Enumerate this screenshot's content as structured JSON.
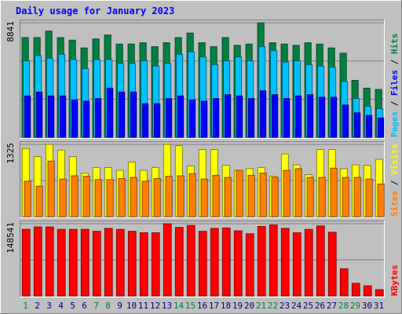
{
  "chart_data": {
    "type": "bar",
    "title": "Daily usage for January 2023",
    "categories": [
      "1",
      "2",
      "3",
      "4",
      "5",
      "6",
      "7",
      "8",
      "9",
      "10",
      "11",
      "12",
      "13",
      "14",
      "15",
      "16",
      "17",
      "18",
      "19",
      "20",
      "21",
      "22",
      "23",
      "24",
      "25",
      "26",
      "27",
      "28",
      "29",
      "30",
      "31"
    ],
    "weekend_days": [
      "1",
      "7",
      "8",
      "14",
      "15",
      "21",
      "22",
      "28",
      "29"
    ],
    "panels": [
      {
        "name": "hits_files_pages",
        "ymax_label": "8841",
        "ylim": [
          0,
          8841
        ],
        "right_labels": [
          "Pages",
          "Files",
          "Hits"
        ],
        "series": [
          {
            "name": "Hits",
            "color": "#008040",
            "values": [
              7700,
              7700,
              8200,
              7700,
              7500,
              6900,
              7600,
              7900,
              7200,
              7200,
              7300,
              7000,
              7300,
              7700,
              8050,
              7300,
              7000,
              7700,
              7100,
              7200,
              8841,
              7300,
              7200,
              7100,
              7300,
              7200,
              6900,
              6500,
              4400,
              3800,
              3700
            ]
          },
          {
            "name": "Files",
            "color": "#00c0ff",
            "values": [
              5900,
              6300,
              6100,
              6400,
              6000,
              5300,
              6000,
              6000,
              5700,
              5700,
              5900,
              5500,
              5700,
              6400,
              6600,
              6200,
              5600,
              5900,
              6200,
              5900,
              7000,
              6700,
              5800,
              5900,
              5600,
              5500,
              5400,
              4300,
              3000,
              2400,
              2200
            ]
          },
          {
            "name": "Pages",
            "color": "#0000ff",
            "values": [
              3200,
              3500,
              3200,
              3200,
              2900,
              2800,
              3000,
              3800,
              3500,
              3500,
              2600,
              2600,
              3000,
              3200,
              2900,
              2800,
              3000,
              3300,
              3200,
              3000,
              3600,
              3300,
              3000,
              3200,
              3300,
              3100,
              3100,
              2500,
              1900,
              1700,
              1500
            ]
          }
        ]
      },
      {
        "name": "visits_sites",
        "ymax_label": "1325",
        "ylim": [
          0,
          1325
        ],
        "right_labels": [
          "Sites",
          "Visits"
        ],
        "series": [
          {
            "name": "Visits",
            "color": "#ffff00",
            "values": [
              1250,
              1100,
              1325,
              1220,
              1100,
              800,
              900,
              900,
              850,
              1000,
              850,
              900,
              1325,
              1300,
              930,
              1230,
              1230,
              940,
              850,
              880,
              900,
              740,
              1150,
              950,
              770,
              1230,
              1230,
              880,
              950,
              940,
              1050
            ]
          },
          {
            "name": "Sites",
            "color": "#ff8000",
            "values": [
              650,
              560,
              1020,
              690,
              750,
              740,
              680,
              680,
              700,
              720,
              650,
              700,
              740,
              750,
              790,
              690,
              760,
              720,
              850,
              760,
              800,
              720,
              850,
              880,
              720,
              720,
              890,
              720,
              720,
              690,
              600
            ]
          }
        ]
      },
      {
        "name": "kbytes",
        "ymax_label": "148541",
        "ylim": [
          0,
          148541
        ],
        "right_labels": [
          "KBytes"
        ],
        "series": [
          {
            "name": "KBytes",
            "color": "#ff0000",
            "values": [
              137000,
              142000,
              142000,
              137000,
              137000,
              137000,
              133000,
              139000,
              137000,
              133000,
              130000,
              130000,
              148541,
              141000,
              145000,
              133000,
              139000,
              140000,
              134000,
              128000,
              143000,
              146000,
              139000,
              130000,
              137000,
              144000,
              131000,
              56000,
              26000,
              21000,
              13000
            ]
          }
        ]
      }
    ]
  }
}
